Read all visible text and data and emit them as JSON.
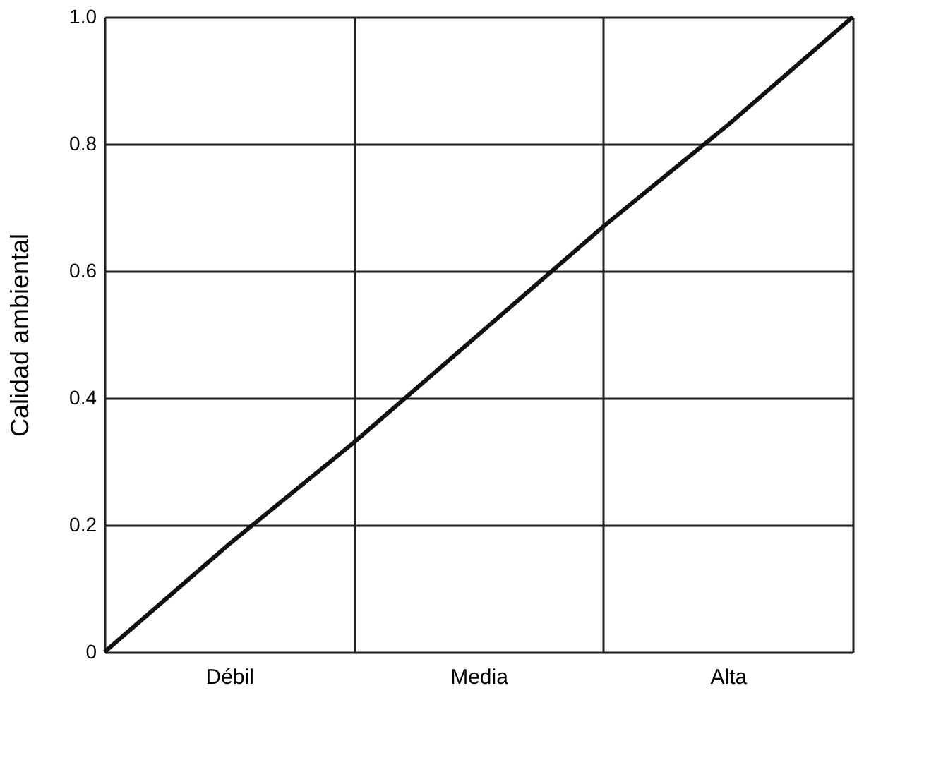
{
  "chart_data": {
    "type": "line",
    "ylabel": "Calidad ambiental",
    "categories": [
      null,
      "Débil",
      null,
      "Media",
      null,
      "Alta",
      null
    ],
    "values": [
      0,
      0.17,
      0.33,
      0.5,
      0.67,
      0.83,
      1
    ],
    "color": "#111111",
    "marker": "none",
    "line_style": "solid",
    "ylim": [
      0,
      1
    ],
    "yticks": [
      0,
      0.2,
      0.4,
      0.6,
      0.8,
      {
        "value": 1,
        "label": "1.0"
      }
    ],
    "grid": true
  }
}
